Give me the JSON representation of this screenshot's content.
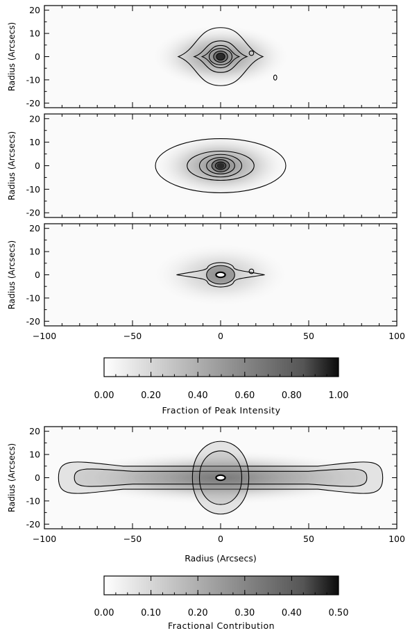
{
  "chart_data": [
    {
      "type": "heatmap",
      "ylabel": "Radius (Arcsecs)",
      "xlim": [
        -100,
        100
      ],
      "ylim": [
        -22,
        22
      ],
      "yticks": [
        20,
        10,
        0,
        -10,
        -20
      ],
      "contours": [
        {
          "level": 1,
          "shape": "lens",
          "a": 24,
          "b": 12.5
        },
        {
          "level": 2,
          "shape": "lens",
          "a": 15,
          "b": 6.8
        },
        {
          "level": 3,
          "shape": "lens",
          "a": 10.5,
          "b": 4.8
        },
        {
          "level": 4,
          "shape": "ellipse",
          "a": 6.5,
          "b": 3.5
        },
        {
          "level": 5,
          "shape": "ellipse",
          "a": 4,
          "b": 2.4
        },
        {
          "level": 6,
          "shape": "ellipse",
          "a": 2.4,
          "b": 1.5
        }
      ],
      "features": [
        {
          "x": 17.5,
          "y": 1.5,
          "a": 1.3,
          "b": 1.0
        },
        {
          "x": 31,
          "y": -9,
          "a": 0.9,
          "b": 1.1
        }
      ]
    },
    {
      "type": "heatmap",
      "ylabel": "Radius (Arcsecs)",
      "xlim": [
        -100,
        100
      ],
      "ylim": [
        -22,
        22
      ],
      "yticks": [
        20,
        10,
        0,
        -10,
        -20
      ],
      "contours": [
        {
          "level": 1,
          "shape": "ellipse",
          "a": 37,
          "b": 11.5
        },
        {
          "level": 2,
          "shape": "ellipse",
          "a": 19,
          "b": 6.2
        },
        {
          "level": 3,
          "shape": "ellipse",
          "a": 12,
          "b": 4.8
        },
        {
          "level": 4,
          "shape": "ellipse",
          "a": 8,
          "b": 3.5
        },
        {
          "level": 5,
          "shape": "ellipse",
          "a": 5,
          "b": 2.6
        },
        {
          "level": 6,
          "shape": "ellipse",
          "a": 3,
          "b": 1.6
        }
      ]
    },
    {
      "type": "heatmap",
      "ylabel": "Radius (Arcsecs)",
      "xlabel": "",
      "xlim": [
        -100,
        100
      ],
      "ylim": [
        -22,
        22
      ],
      "xticks": [
        -100,
        -50,
        0,
        50,
        100
      ],
      "yticks": [
        20,
        10,
        0,
        -10,
        -20
      ],
      "contours": [
        {
          "level": 1,
          "shape": "flare",
          "a": 25,
          "b": 6
        },
        {
          "level": 2,
          "shape": "ellipse",
          "a": 8,
          "b": 4
        }
      ],
      "features": [
        {
          "x": 17.5,
          "y": 1.5,
          "a": 1.3,
          "b": 1.0
        }
      ]
    },
    {
      "type": "heatmap",
      "ylabel": "Radius (Arcsecs)",
      "xlabel": "Radius (Arcsecs)",
      "xlim": [
        -100,
        100
      ],
      "ylim": [
        -22,
        22
      ],
      "xticks": [
        -100,
        -50,
        0,
        50,
        100
      ],
      "yticks": [
        20,
        10,
        0,
        -10,
        -20
      ],
      "contours": [
        {
          "level": 1,
          "shape": "disk",
          "halfLength": 92,
          "halfHeight": 9
        },
        {
          "level": 2,
          "shape": "disk",
          "halfLength": 83,
          "halfHeight": 5
        },
        {
          "level": 3,
          "shape": "bulge",
          "a": 16,
          "b": 19
        },
        {
          "level": 4,
          "shape": "bulge",
          "a": 12,
          "b": 14
        }
      ]
    }
  ],
  "colorbars": [
    {
      "label": "Fraction of Peak Intensity",
      "ticks": [
        "0.00",
        "0.20",
        "0.40",
        "0.60",
        "0.80",
        "1.00"
      ],
      "range": [
        0.0,
        1.0
      ]
    },
    {
      "label": "Fractional Contribution",
      "ticks": [
        "0.00",
        "0.10",
        "0.20",
        "0.30",
        "0.40",
        "0.50"
      ],
      "range": [
        0.0,
        0.5
      ]
    }
  ]
}
